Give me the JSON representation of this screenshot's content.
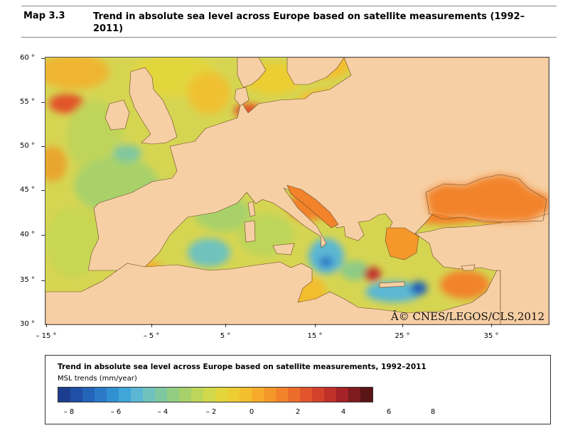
{
  "header": {
    "map_label": "Map 3.3",
    "title": "Trend in absolute sea level across Europe based on satellite measurements (1992–2011)"
  },
  "map": {
    "copyright": "Â© CNES/LEGOS/CLS,2012",
    "y_ticks": [
      "60 °",
      "55 °",
      "50 °",
      "45 °",
      "40 °",
      "35 °",
      "30 °"
    ],
    "x_ticks": [
      "– 15 °",
      "– 5 °",
      "5 °",
      "15 °",
      "25 °",
      "35 °"
    ],
    "land_color": "#f7cfa4",
    "sea_base_color": "#d6d552"
  },
  "legend": {
    "title": "Trend in absolute sea level across Europe based on satellite measurements, 1992–2011",
    "subtitle": "MSL trends (mm/year)",
    "ticks": [
      "– 8",
      "– 6",
      "– 4",
      "– 2",
      "0",
      "2",
      "4",
      "6",
      "8"
    ],
    "colors": [
      "#1c3d8f",
      "#1f4fa6",
      "#2464b8",
      "#2a7ac8",
      "#3190d2",
      "#3ea6d8",
      "#5bb7d3",
      "#6fc2bd",
      "#7fc79f",
      "#93cd84",
      "#a8d16b",
      "#bdd55a",
      "#d1d84a",
      "#e2d63c",
      "#eccd33",
      "#f3be2d",
      "#f6ac2a",
      "#f59829",
      "#f2832a",
      "#ec6c2b",
      "#e2552c",
      "#d4412b",
      "#c0302a",
      "#a52227",
      "#7d1b1e",
      "#5a1516"
    ]
  }
}
